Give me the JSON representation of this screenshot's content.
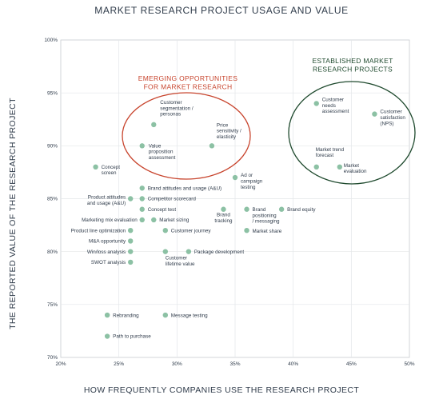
{
  "chart_data": {
    "type": "scatter",
    "title": "MARKET RESEARCH PROJECT USAGE AND VALUE",
    "xlabel": "HOW FREQUENTLY COMPANIES USE THE RESEARCH PROJECT",
    "ylabel": "THE REPORTED VALUE OF THE RESEARCH PROJECT",
    "xlim": [
      20,
      50
    ],
    "ylim": [
      70,
      100
    ],
    "x_ticks": [
      20,
      25,
      30,
      35,
      40,
      45,
      50
    ],
    "x_tick_labels": [
      "20%",
      "25%",
      "30%",
      "35%",
      "40%",
      "45%",
      "50%"
    ],
    "y_ticks": [
      70,
      75,
      80,
      85,
      90,
      95,
      100
    ],
    "y_tick_labels": [
      "70%",
      "75%",
      "80%",
      "85%",
      "90%",
      "95%",
      "100%"
    ],
    "grid": true,
    "point_color": "#8cc1a4",
    "points": [
      {
        "label": "Customer\nsegmentation /\npersonas",
        "x": 28,
        "y": 92
      },
      {
        "label": "Price\nsensitivity /\nelasticity",
        "x": 33,
        "y": 90
      },
      {
        "label": "Value\nproposition\nassessment",
        "x": 27,
        "y": 90
      },
      {
        "label": "Concept\nscreen",
        "x": 23,
        "y": 88
      },
      {
        "label": "Ad or\ncampaign\ntesting",
        "x": 35,
        "y": 87
      },
      {
        "label": "Brand attitudes and usage (A&U)",
        "x": 27,
        "y": 86
      },
      {
        "label": "Competitor scorecard",
        "x": 27,
        "y": 85
      },
      {
        "label": "Product attitudes\nand usage (A&U)",
        "x": 26,
        "y": 85
      },
      {
        "label": "Concept test",
        "x": 27,
        "y": 84
      },
      {
        "label": "Brand\ntracking",
        "x": 34,
        "y": 84
      },
      {
        "label": "Brand\npositioning\n/ messaging",
        "x": 36,
        "y": 84
      },
      {
        "label": "Brand equity",
        "x": 39,
        "y": 84
      },
      {
        "label": "Marketing mix evaluation",
        "x": 27,
        "y": 83
      },
      {
        "label": "Market sizing",
        "x": 28,
        "y": 83
      },
      {
        "label": "Product line optimization",
        "x": 26,
        "y": 82
      },
      {
        "label": "Customer journey",
        "x": 29,
        "y": 82
      },
      {
        "label": "Market share",
        "x": 36,
        "y": 82
      },
      {
        "label": "M&A opportunity",
        "x": 26,
        "y": 81
      },
      {
        "label": "Win/loss analysis",
        "x": 26,
        "y": 80
      },
      {
        "label": "Customer\nlifetime value",
        "x": 29,
        "y": 80
      },
      {
        "label": "Package development",
        "x": 31,
        "y": 80
      },
      {
        "label": "SWOT analysis",
        "x": 26,
        "y": 79
      },
      {
        "label": "Rebranding",
        "x": 24,
        "y": 74
      },
      {
        "label": "Message testing",
        "x": 29,
        "y": 74
      },
      {
        "label": "Path to purchase",
        "x": 24,
        "y": 72
      },
      {
        "label": "Customer\nneeds\nassessment",
        "x": 42,
        "y": 94
      },
      {
        "label": "Customer\nsatisfaction\n(NPS)",
        "x": 47,
        "y": 93
      },
      {
        "label": "Market trend\nforecast",
        "x": 42,
        "y": 88
      },
      {
        "label": "Market\nevaluation",
        "x": 44,
        "y": 88
      }
    ],
    "annotations": [
      {
        "text": "EMERGING OPPORTUNITIES\nFOR MARKET RESEARCH",
        "color": "#c8452e"
      },
      {
        "text": "ESTABLISHED MARKET\nRESEARCH PROJECTS",
        "color": "#1f4a2e"
      }
    ]
  }
}
